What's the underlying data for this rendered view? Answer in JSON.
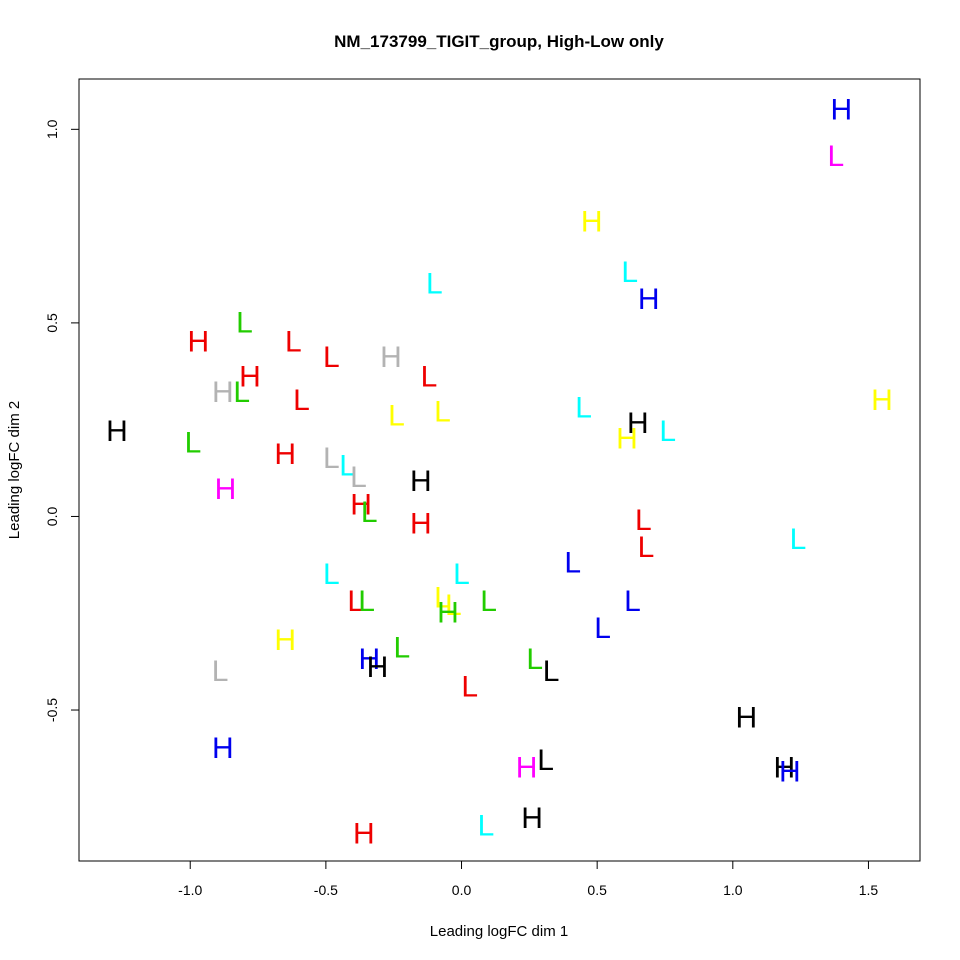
{
  "chart_data": {
    "type": "scatter",
    "title": "NM_173799_TIGIT_group, High-Low only",
    "xlabel": "Leading logFC dim 1",
    "ylabel": "Leading logFC dim 2",
    "xlim": [
      -1.41,
      1.69
    ],
    "ylim": [
      -0.89,
      1.13
    ],
    "xticks": [
      -1.0,
      -0.5,
      0.0,
      0.5,
      1.0,
      1.5
    ],
    "xtick_labels": [
      "-1.0",
      "-0.5",
      "0.0",
      "0.5",
      "1.0",
      "1.5"
    ],
    "yticks": [
      -0.5,
      0.0,
      0.5,
      1.0
    ],
    "ytick_labels": [
      "-0.5",
      "0.0",
      "0.5",
      "1.0"
    ],
    "grid": false,
    "colors": {
      "blue": "#0000ee",
      "magenta": "#ff00ff",
      "yellow": "#ffff00",
      "cyan": "#00ffff",
      "black": "#000000",
      "red": "#ee0000",
      "green": "#22cc00",
      "gray": "#b3b3b3"
    },
    "points": [
      {
        "label": "H",
        "color": "blue",
        "x": 1.4,
        "y": 1.05
      },
      {
        "label": "L",
        "color": "magenta",
        "x": 1.38,
        "y": 0.93
      },
      {
        "label": "H",
        "color": "yellow",
        "x": 0.48,
        "y": 0.76
      },
      {
        "label": "L",
        "color": "cyan",
        "x": 0.62,
        "y": 0.63
      },
      {
        "label": "H",
        "color": "blue",
        "x": 0.69,
        "y": 0.56
      },
      {
        "label": "L",
        "color": "cyan",
        "x": -0.1,
        "y": 0.6
      },
      {
        "label": "L",
        "color": "green",
        "x": -0.8,
        "y": 0.5
      },
      {
        "label": "H",
        "color": "red",
        "x": -0.97,
        "y": 0.45
      },
      {
        "label": "L",
        "color": "red",
        "x": -0.62,
        "y": 0.45
      },
      {
        "label": "L",
        "color": "red",
        "x": -0.48,
        "y": 0.41
      },
      {
        "label": "H",
        "color": "gray",
        "x": -0.26,
        "y": 0.41
      },
      {
        "label": "L",
        "color": "red",
        "x": -0.12,
        "y": 0.36
      },
      {
        "label": "H",
        "color": "red",
        "x": -0.78,
        "y": 0.36
      },
      {
        "label": "H",
        "color": "gray",
        "x": -0.88,
        "y": 0.32
      },
      {
        "label": "L",
        "color": "green",
        "x": -0.81,
        "y": 0.32
      },
      {
        "label": "L",
        "color": "red",
        "x": -0.59,
        "y": 0.3
      },
      {
        "label": "L",
        "color": "yellow",
        "x": -0.24,
        "y": 0.26
      },
      {
        "label": "L",
        "color": "yellow",
        "x": -0.07,
        "y": 0.27
      },
      {
        "label": "L",
        "color": "cyan",
        "x": 0.45,
        "y": 0.28
      },
      {
        "label": "H",
        "color": "black",
        "x": 0.65,
        "y": 0.24
      },
      {
        "label": "H",
        "color": "yellow",
        "x": 0.61,
        "y": 0.2
      },
      {
        "label": "L",
        "color": "cyan",
        "x": 0.76,
        "y": 0.22
      },
      {
        "label": "H",
        "color": "yellow",
        "x": 1.55,
        "y": 0.3
      },
      {
        "label": "H",
        "color": "black",
        "x": -1.27,
        "y": 0.22
      },
      {
        "label": "L",
        "color": "green",
        "x": -0.99,
        "y": 0.19
      },
      {
        "label": "H",
        "color": "red",
        "x": -0.65,
        "y": 0.16
      },
      {
        "label": "L",
        "color": "gray",
        "x": -0.48,
        "y": 0.15
      },
      {
        "label": "L",
        "color": "cyan",
        "x": -0.42,
        "y": 0.13
      },
      {
        "label": "L",
        "color": "gray",
        "x": -0.38,
        "y": 0.1
      },
      {
        "label": "H",
        "color": "black",
        "x": -0.15,
        "y": 0.09
      },
      {
        "label": "H",
        "color": "magenta",
        "x": -0.87,
        "y": 0.07
      },
      {
        "label": "H",
        "color": "red",
        "x": -0.37,
        "y": 0.03
      },
      {
        "label": "L",
        "color": "green",
        "x": -0.34,
        "y": 0.01
      },
      {
        "label": "H",
        "color": "red",
        "x": -0.15,
        "y": -0.02
      },
      {
        "label": "L",
        "color": "red",
        "x": 0.67,
        "y": -0.01
      },
      {
        "label": "L",
        "color": "red",
        "x": 0.68,
        "y": -0.08
      },
      {
        "label": "L",
        "color": "cyan",
        "x": 1.24,
        "y": -0.06
      },
      {
        "label": "L",
        "color": "blue",
        "x": 0.41,
        "y": -0.12
      },
      {
        "label": "L",
        "color": "cyan",
        "x": -0.48,
        "y": -0.15
      },
      {
        "label": "L",
        "color": "cyan",
        "x": 0.0,
        "y": -0.15
      },
      {
        "label": "L",
        "color": "yellow",
        "x": -0.07,
        "y": -0.21
      },
      {
        "label": "L",
        "color": "red",
        "x": -0.39,
        "y": -0.22
      },
      {
        "label": "L",
        "color": "green",
        "x": -0.35,
        "y": -0.22
      },
      {
        "label": "L",
        "color": "yellow",
        "x": -0.03,
        "y": -0.23
      },
      {
        "label": "H",
        "color": "green",
        "x": -0.05,
        "y": -0.25
      },
      {
        "label": "L",
        "color": "green",
        "x": 0.1,
        "y": -0.22
      },
      {
        "label": "L",
        "color": "blue",
        "x": 0.63,
        "y": -0.22
      },
      {
        "label": "L",
        "color": "blue",
        "x": 0.52,
        "y": -0.29
      },
      {
        "label": "H",
        "color": "yellow",
        "x": -0.65,
        "y": -0.32
      },
      {
        "label": "L",
        "color": "green",
        "x": -0.22,
        "y": -0.34
      },
      {
        "label": "H",
        "color": "blue",
        "x": -0.34,
        "y": -0.37
      },
      {
        "label": "H",
        "color": "black",
        "x": -0.31,
        "y": -0.39
      },
      {
        "label": "L",
        "color": "green",
        "x": 0.27,
        "y": -0.37
      },
      {
        "label": "L",
        "color": "black",
        "x": 0.33,
        "y": -0.4
      },
      {
        "label": "L",
        "color": "gray",
        "x": -0.89,
        "y": -0.4
      },
      {
        "label": "L",
        "color": "red",
        "x": 0.03,
        "y": -0.44
      },
      {
        "label": "H",
        "color": "black",
        "x": 1.05,
        "y": -0.52
      },
      {
        "label": "H",
        "color": "blue",
        "x": -0.88,
        "y": -0.6
      },
      {
        "label": "L",
        "color": "black",
        "x": 0.31,
        "y": -0.63
      },
      {
        "label": "H",
        "color": "magenta",
        "x": 0.24,
        "y": -0.65
      },
      {
        "label": "H",
        "color": "black",
        "x": 1.19,
        "y": -0.65
      },
      {
        "label": "H",
        "color": "blue",
        "x": 1.21,
        "y": -0.66
      },
      {
        "label": "L",
        "color": "cyan",
        "x": 0.09,
        "y": -0.8
      },
      {
        "label": "H",
        "color": "black",
        "x": 0.26,
        "y": -0.78
      },
      {
        "label": "H",
        "color": "red",
        "x": -0.36,
        "y": -0.82
      }
    ]
  }
}
